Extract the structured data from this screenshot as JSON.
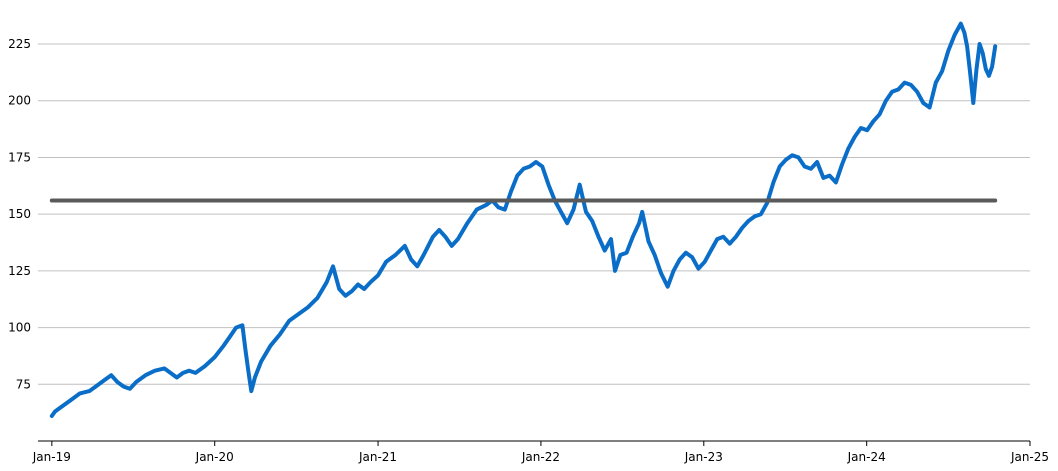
{
  "chart_data": {
    "type": "line",
    "title": "",
    "xlabel": "",
    "ylabel": "",
    "x_axis": {
      "type": "date",
      "range": [
        "2018-12-01",
        "2025-01-01"
      ],
      "ticks": [
        {
          "date": "2019-01-01",
          "label": "Jan-19"
        },
        {
          "date": "2020-01-01",
          "label": "Jan-20"
        },
        {
          "date": "2021-01-01",
          "label": "Jan-21"
        },
        {
          "date": "2022-01-01",
          "label": "Jan-22"
        },
        {
          "date": "2023-01-01",
          "label": "Jan-23"
        },
        {
          "date": "2024-01-01",
          "label": "Jan-24"
        },
        {
          "date": "2025-01-01",
          "label": "Jan-25"
        }
      ]
    },
    "y_axis": {
      "range": [
        50,
        240
      ],
      "ticks": [
        75,
        100,
        125,
        150,
        175,
        200,
        225
      ],
      "grid": true
    },
    "legend": "none",
    "series": [
      {
        "style": "line",
        "color": "#0A6EC8",
        "points": [
          [
            "2019-01-01",
            61
          ],
          [
            "2019-01-08",
            63
          ],
          [
            "2019-01-22",
            65
          ],
          [
            "2019-02-12",
            68
          ],
          [
            "2019-03-05",
            71
          ],
          [
            "2019-03-26",
            72
          ],
          [
            "2019-04-09",
            74
          ],
          [
            "2019-04-30",
            77
          ],
          [
            "2019-05-14",
            79
          ],
          [
            "2019-05-28",
            76
          ],
          [
            "2019-06-11",
            74
          ],
          [
            "2019-06-25",
            73
          ],
          [
            "2019-07-09",
            76
          ],
          [
            "2019-07-30",
            79
          ],
          [
            "2019-08-20",
            81
          ],
          [
            "2019-09-10",
            82
          ],
          [
            "2019-09-24",
            80
          ],
          [
            "2019-10-08",
            78
          ],
          [
            "2019-10-22",
            80
          ],
          [
            "2019-11-05",
            81
          ],
          [
            "2019-11-19",
            80
          ],
          [
            "2019-12-10",
            83
          ],
          [
            "2020-01-01",
            87
          ],
          [
            "2020-01-21",
            92
          ],
          [
            "2020-02-04",
            96
          ],
          [
            "2020-02-18",
            100
          ],
          [
            "2020-03-03",
            101
          ],
          [
            "2020-03-10",
            90
          ],
          [
            "2020-03-17",
            80
          ],
          [
            "2020-03-23",
            72
          ],
          [
            "2020-03-31",
            78
          ],
          [
            "2020-04-14",
            85
          ],
          [
            "2020-05-05",
            92
          ],
          [
            "2020-05-26",
            97
          ],
          [
            "2020-06-16",
            103
          ],
          [
            "2020-07-07",
            106
          ],
          [
            "2020-07-28",
            109
          ],
          [
            "2020-08-18",
            113
          ],
          [
            "2020-09-08",
            120
          ],
          [
            "2020-09-22",
            127
          ],
          [
            "2020-10-06",
            117
          ],
          [
            "2020-10-20",
            114
          ],
          [
            "2020-11-03",
            116
          ],
          [
            "2020-11-17",
            119
          ],
          [
            "2020-12-01",
            117
          ],
          [
            "2020-12-15",
            120
          ],
          [
            "2021-01-01",
            123
          ],
          [
            "2021-01-19",
            129
          ],
          [
            "2021-02-09",
            132
          ],
          [
            "2021-03-02",
            136
          ],
          [
            "2021-03-16",
            130
          ],
          [
            "2021-03-30",
            127
          ],
          [
            "2021-04-13",
            132
          ],
          [
            "2021-05-04",
            140
          ],
          [
            "2021-05-18",
            143
          ],
          [
            "2021-06-01",
            140
          ],
          [
            "2021-06-15",
            136
          ],
          [
            "2021-06-29",
            139
          ],
          [
            "2021-07-20",
            146
          ],
          [
            "2021-08-10",
            152
          ],
          [
            "2021-08-31",
            154
          ],
          [
            "2021-09-14",
            156
          ],
          [
            "2021-09-28",
            153
          ],
          [
            "2021-10-12",
            152
          ],
          [
            "2021-10-26",
            160
          ],
          [
            "2021-11-09",
            167
          ],
          [
            "2021-11-23",
            170
          ],
          [
            "2021-12-07",
            171
          ],
          [
            "2021-12-21",
            173
          ],
          [
            "2022-01-04",
            171
          ],
          [
            "2022-01-18",
            163
          ],
          [
            "2022-02-01",
            156
          ],
          [
            "2022-02-15",
            151
          ],
          [
            "2022-03-01",
            146
          ],
          [
            "2022-03-15",
            152
          ],
          [
            "2022-03-29",
            163
          ],
          [
            "2022-04-12",
            151
          ],
          [
            "2022-04-26",
            147
          ],
          [
            "2022-05-10",
            140
          ],
          [
            "2022-05-24",
            134
          ],
          [
            "2022-06-07",
            139
          ],
          [
            "2022-06-16",
            125
          ],
          [
            "2022-06-28",
            132
          ],
          [
            "2022-07-12",
            133
          ],
          [
            "2022-07-26",
            140
          ],
          [
            "2022-08-09",
            146
          ],
          [
            "2022-08-16",
            151
          ],
          [
            "2022-08-30",
            138
          ],
          [
            "2022-09-13",
            132
          ],
          [
            "2022-09-27",
            124
          ],
          [
            "2022-10-12",
            118
          ],
          [
            "2022-10-25",
            125
          ],
          [
            "2022-11-08",
            130
          ],
          [
            "2022-11-22",
            133
          ],
          [
            "2022-12-06",
            131
          ],
          [
            "2022-12-20",
            126
          ],
          [
            "2023-01-03",
            129
          ],
          [
            "2023-01-17",
            134
          ],
          [
            "2023-01-31",
            139
          ],
          [
            "2023-02-14",
            140
          ],
          [
            "2023-02-28",
            137
          ],
          [
            "2023-03-14",
            140
          ],
          [
            "2023-03-28",
            144
          ],
          [
            "2023-04-11",
            147
          ],
          [
            "2023-04-25",
            149
          ],
          [
            "2023-05-09",
            150
          ],
          [
            "2023-05-23",
            155
          ],
          [
            "2023-06-06",
            164
          ],
          [
            "2023-06-20",
            171
          ],
          [
            "2023-07-04",
            174
          ],
          [
            "2023-07-18",
            176
          ],
          [
            "2023-08-01",
            175
          ],
          [
            "2023-08-15",
            171
          ],
          [
            "2023-08-29",
            170
          ],
          [
            "2023-09-12",
            173
          ],
          [
            "2023-09-26",
            166
          ],
          [
            "2023-10-10",
            167
          ],
          [
            "2023-10-24",
            164
          ],
          [
            "2023-11-07",
            172
          ],
          [
            "2023-11-21",
            179
          ],
          [
            "2023-12-05",
            184
          ],
          [
            "2023-12-19",
            188
          ],
          [
            "2024-01-02",
            187
          ],
          [
            "2024-01-16",
            191
          ],
          [
            "2024-01-30",
            194
          ],
          [
            "2024-02-13",
            200
          ],
          [
            "2024-02-27",
            204
          ],
          [
            "2024-03-12",
            205
          ],
          [
            "2024-03-26",
            208
          ],
          [
            "2024-04-09",
            207
          ],
          [
            "2024-04-23",
            204
          ],
          [
            "2024-05-07",
            199
          ],
          [
            "2024-05-21",
            197
          ],
          [
            "2024-06-04",
            208
          ],
          [
            "2024-06-18",
            213
          ],
          [
            "2024-07-02",
            222
          ],
          [
            "2024-07-16",
            229
          ],
          [
            "2024-07-30",
            234
          ],
          [
            "2024-08-07",
            230
          ],
          [
            "2024-08-13",
            224
          ],
          [
            "2024-08-20",
            212
          ],
          [
            "2024-08-27",
            199
          ],
          [
            "2024-09-03",
            214
          ],
          [
            "2024-09-10",
            225
          ],
          [
            "2024-09-17",
            221
          ],
          [
            "2024-09-24",
            214
          ],
          [
            "2024-10-01",
            211
          ],
          [
            "2024-10-08",
            215
          ],
          [
            "2024-10-15",
            224
          ]
        ]
      },
      {
        "style": "reference-line",
        "color": "#5A5A5A",
        "points": [
          [
            "2019-01-01",
            156
          ],
          [
            "2024-10-15",
            156
          ]
        ]
      }
    ]
  }
}
